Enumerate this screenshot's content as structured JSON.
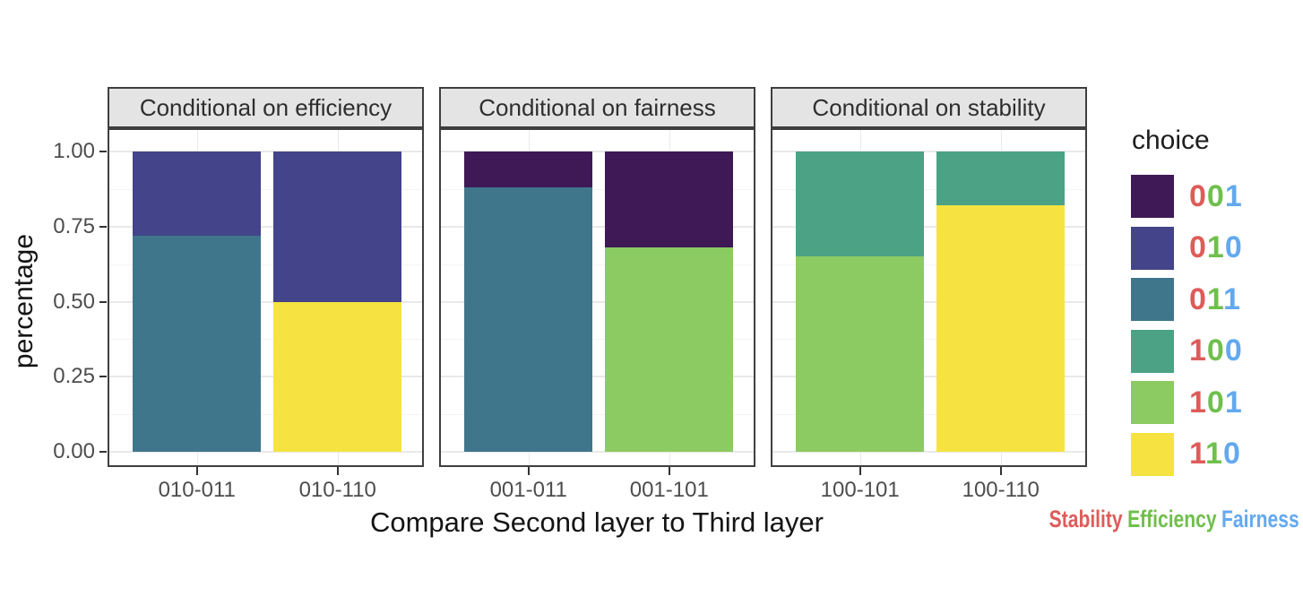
{
  "chart_data": {
    "type": "bar",
    "subtype": "stacked-percentage, 3 facets, legend right",
    "ylabel": "percentage",
    "xlabel": "Compare Second layer to Third layer",
    "ylim": [
      0,
      1
    ],
    "yticks": [
      "1.00",
      "0.75",
      "0.50",
      "0.25",
      "0.00"
    ],
    "ytick_values": [
      1.0,
      0.75,
      0.5,
      0.25,
      0.0
    ],
    "grid": {
      "major_step": 0.25,
      "minor_step": 0.125
    },
    "facets": [
      {
        "title": "Conditional on efficiency",
        "bars": [
          {
            "category": "010-011",
            "segments": [
              {
                "choice": "011",
                "value": 0.72
              },
              {
                "choice": "010",
                "value": 0.28
              }
            ]
          },
          {
            "category": "010-110",
            "segments": [
              {
                "choice": "110",
                "value": 0.5
              },
              {
                "choice": "010",
                "value": 0.5
              }
            ]
          }
        ]
      },
      {
        "title": "Conditional on fairness",
        "bars": [
          {
            "category": "001-011",
            "segments": [
              {
                "choice": "011",
                "value": 0.88
              },
              {
                "choice": "001",
                "value": 0.12
              }
            ]
          },
          {
            "category": "001-101",
            "segments": [
              {
                "choice": "101",
                "value": 0.68
              },
              {
                "choice": "001",
                "value": 0.32
              }
            ]
          }
        ]
      },
      {
        "title": "Conditional on stability",
        "bars": [
          {
            "category": "100-101",
            "segments": [
              {
                "choice": "101",
                "value": 0.65
              },
              {
                "choice": "100",
                "value": 0.35
              }
            ]
          },
          {
            "category": "100-110",
            "segments": [
              {
                "choice": "110",
                "value": 0.82
              },
              {
                "choice": "100",
                "value": 0.18
              }
            ]
          }
        ]
      }
    ],
    "legend": {
      "title": "choice",
      "entries": [
        {
          "label": "001",
          "color": "#3e1956"
        },
        {
          "label": "010",
          "color": "#434489"
        },
        {
          "label": "011",
          "color": "#40768c"
        },
        {
          "label": "100",
          "color": "#4ba285"
        },
        {
          "label": "101",
          "color": "#8ccb62"
        },
        {
          "label": "110",
          "color": "#f6e341"
        }
      ],
      "digit_position_colors": [
        "#dd5c5a",
        "#6fbf4c",
        "#63a9ef"
      ]
    },
    "footer_words": [
      {
        "text": "Stability",
        "color": "#dd5c5a"
      },
      {
        "text": "Efficiency",
        "color": "#6fbf4c"
      },
      {
        "text": "Fairness",
        "color": "#63a9ef"
      }
    ]
  },
  "colors": {
    "strip_bg": "#e4e4e4",
    "strip_border": "#3f3f3f",
    "panel_border": "#3f3f3f",
    "grid_major": "#e9e9e9",
    "grid_minor": "#f4f4f4",
    "axis_text": "#4d4d4d",
    "title_text": "#141414"
  }
}
